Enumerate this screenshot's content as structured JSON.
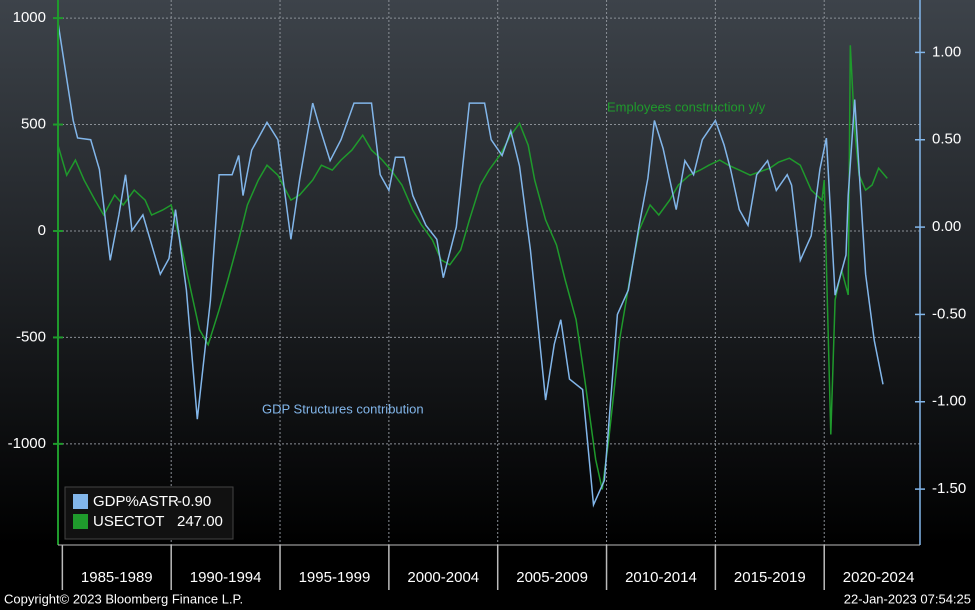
{
  "chart_data": {
    "type": "line",
    "annotations": [
      {
        "text": "Employees construction y/y",
        "series": 1
      },
      {
        "text": "GDP Structures contribution",
        "series": 0
      }
    ],
    "footer_left": "Copyright© 2023 Bloomberg Finance L.P.",
    "footer_right": "22-Jan-2023 07:54:25",
    "xlim": [
      1984.8,
      2024.4
    ],
    "xticks": [
      {
        "value": 1985,
        "label": "1985-1989"
      },
      {
        "value": 1990,
        "label": "1990-1994"
      },
      {
        "value": 1995,
        "label": "1995-1999"
      },
      {
        "value": 2000,
        "label": "2000-2004"
      },
      {
        "value": 2005,
        "label": "2005-2009"
      },
      {
        "value": 2010,
        "label": "2010-2014"
      },
      {
        "value": 2015,
        "label": "2015-2019"
      },
      {
        "value": 2020,
        "label": "2020-2024"
      }
    ],
    "ylim": [
      -1475,
      1085
    ],
    "yticks": [
      1000,
      500,
      0,
      -500,
      -1000
    ],
    "y2lim": [
      -1.82,
      1.3
    ],
    "y2ticks": [
      {
        "value": 1.0,
        "label": "1.00"
      },
      {
        "value": 0.5,
        "label": "0.50"
      },
      {
        "value": 0,
        "label": "0.00"
      },
      {
        "value": -0.5,
        "label": "-0.50"
      },
      {
        "value": -1.0,
        "label": "-1.00"
      },
      {
        "value": -1.5,
        "label": "-1.50"
      }
    ],
    "grid": true,
    "series": [
      {
        "name": "GDP%ASTR",
        "last_label": "-0.90",
        "color": "#82b6ea",
        "axis": "y2",
        "x": [
          1984.8,
          1985.5,
          1985.7,
          1986.3,
          1986.7,
          1987.2,
          1987.6,
          1987.9,
          1988.2,
          1988.7,
          1989.1,
          1989.5,
          1989.9,
          1990.2,
          1990.7,
          1991.2,
          1991.8,
          1992.2,
          1992.8,
          1993.1,
          1993.3,
          1993.7,
          1994.4,
          1994.9,
          1995.5,
          1995.9,
          1996.5,
          1996.8,
          1997.3,
          1997.8,
          1998.4,
          1999.2,
          1999.6,
          2000.0,
          2000.3,
          2000.7,
          2001.1,
          2001.7,
          2002.2,
          2002.5,
          2003.1,
          2003.7,
          2004.4,
          2004.7,
          2005.2,
          2005.6,
          2006.0,
          2006.5,
          2007.2,
          2007.6,
          2007.9,
          2008.3,
          2008.9,
          2009.4,
          2009.9,
          2010.5,
          2011.0,
          2011.5,
          2011.9,
          2012.2,
          2012.6,
          2013.2,
          2013.6,
          2014.0,
          2014.4,
          2015.0,
          2015.4,
          2015.7,
          2016.1,
          2016.5,
          2016.9,
          2017.4,
          2017.8,
          2018.3,
          2018.5,
          2018.9,
          2019.4,
          2019.8,
          2020.1,
          2020.5,
          2021.0,
          2021.1,
          2021.4,
          2021.9,
          2022.3,
          2022.7
        ],
        "values": [
          1.17,
          0.61,
          0.51,
          0.5,
          0.33,
          -0.19,
          0.07,
          0.3,
          -0.02,
          0.07,
          -0.1,
          -0.27,
          -0.18,
          0.1,
          -0.36,
          -1.1,
          -0.42,
          0.3,
          0.3,
          0.41,
          0.18,
          0.44,
          0.6,
          0.5,
          -0.07,
          0.27,
          0.71,
          0.58,
          0.38,
          0.5,
          0.71,
          0.71,
          0.3,
          0.21,
          0.4,
          0.4,
          0.18,
          0.01,
          -0.07,
          -0.29,
          0.0,
          0.71,
          0.71,
          0.5,
          0.41,
          0.55,
          0.35,
          -0.13,
          -0.99,
          -0.67,
          -0.53,
          -0.87,
          -0.93,
          -1.59,
          -1.45,
          -0.5,
          -0.36,
          0.01,
          0.28,
          0.61,
          0.45,
          0.1,
          0.38,
          0.3,
          0.5,
          0.61,
          0.47,
          0.33,
          0.1,
          0.01,
          0.3,
          0.38,
          0.21,
          0.3,
          0.24,
          -0.19,
          -0.05,
          0.33,
          0.51,
          -0.39,
          -0.16,
          0.18,
          0.73,
          -0.27,
          -0.65,
          -0.9
        ]
      },
      {
        "name": "USECTOT",
        "last_label": "247.00",
        "color": "#1f9a2c",
        "axis": "y",
        "x": [
          1984.8,
          1985.2,
          1985.6,
          1986.0,
          1986.5,
          1986.9,
          1987.4,
          1987.8,
          1988.3,
          1988.8,
          1989.1,
          1989.6,
          1990.0,
          1990.4,
          1990.9,
          1991.3,
          1991.7,
          1992.2,
          1992.6,
          1993.1,
          1993.5,
          1994.0,
          1994.4,
          1994.9,
          1995.5,
          1995.9,
          1996.5,
          1996.9,
          1997.4,
          1997.8,
          1998.3,
          1998.8,
          1999.2,
          1999.7,
          2000.1,
          2000.6,
          2001.1,
          2001.5,
          2002.0,
          2002.4,
          2002.8,
          2003.3,
          2003.7,
          2004.2,
          2004.6,
          2005.1,
          2005.6,
          2006.0,
          2006.4,
          2006.7,
          2007.2,
          2007.7,
          2008.1,
          2008.6,
          2009.0,
          2009.5,
          2009.8,
          2010.1,
          2010.6,
          2011.1,
          2011.5,
          2012.0,
          2012.4,
          2012.9,
          2013.3,
          2013.8,
          2014.3,
          2014.7,
          2015.2,
          2015.6,
          2016.1,
          2016.6,
          2017.0,
          2017.5,
          2017.9,
          2018.4,
          2018.9,
          2019.4,
          2019.9,
          2020.0,
          2020.3,
          2020.5,
          2020.8,
          2021.1,
          2021.2,
          2021.4,
          2021.6,
          2021.9,
          2022.2,
          2022.5,
          2022.9
        ],
        "values": [
          403,
          262,
          333,
          239,
          145,
          75,
          169,
          122,
          192,
          145,
          75,
          98,
          122,
          -42,
          -277,
          -464,
          -534,
          -370,
          -230,
          -42,
          122,
          239,
          309,
          262,
          145,
          169,
          239,
          309,
          286,
          333,
          380,
          450,
          380,
          333,
          286,
          216,
          98,
          28,
          -42,
          -136,
          -159,
          -89,
          52,
          216,
          286,
          356,
          450,
          506,
          403,
          239,
          52,
          -66,
          -230,
          -417,
          -699,
          -1074,
          -1214,
          -980,
          -511,
          -206,
          5,
          122,
          75,
          145,
          216,
          262,
          286,
          309,
          333,
          309,
          286,
          262,
          277,
          295,
          323,
          342,
          309,
          192,
          145,
          239,
          -956,
          -323,
          -183,
          -300,
          872,
          474,
          262,
          192,
          216,
          295,
          247
        ]
      }
    ]
  }
}
